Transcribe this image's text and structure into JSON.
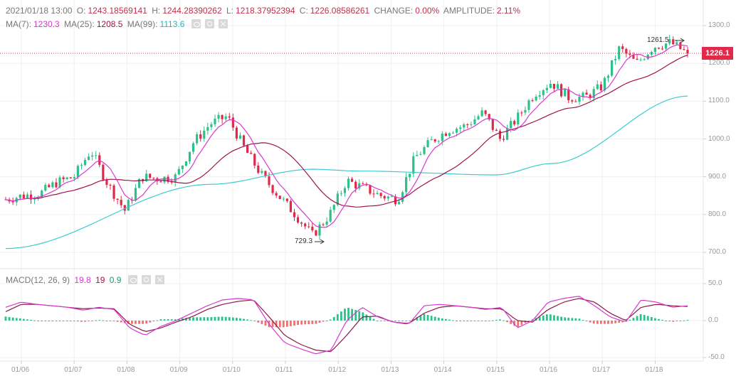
{
  "header": {
    "datetime": "2021/01/18 13:00",
    "open_label": "O:",
    "open": "1243.18569141",
    "high_label": "H:",
    "high": "1244.28390262",
    "low_label": "L:",
    "low": "1218.37952394",
    "close_label": "C:",
    "close": "1226.08586261",
    "change_label": "CHANGE:",
    "change": "0.00%",
    "amplitude_label": "AMPLITUDE:",
    "amplitude": "2.11%"
  },
  "ma_legend": {
    "ma7_label": "MA(7):",
    "ma7": "1230.3",
    "ma25_label": "MA(25):",
    "ma25": "1208.5",
    "ma99_label": "MA(99):",
    "ma99": "1113.6"
  },
  "macd_legend": {
    "label": "MACD(12, 26, 9)",
    "dif": "19.8",
    "dea": "19",
    "hist": "0.9"
  },
  "icons": [
    "eye-icon",
    "settings-icon",
    "close-icon"
  ],
  "current_price_tag": "1226.1",
  "annotations": {
    "max": "1261.5",
    "min": "729.3"
  },
  "colors": {
    "up": "#2ec08a",
    "down": "#e0294a",
    "ma7": "#d63ad0",
    "ma25": "#a0134f",
    "ma99": "#3ccbd0",
    "macd_dif": "#d63ad0",
    "macd_dea": "#8a1a4a",
    "hist_up": "#2ec08a",
    "hist_down": "#f07070",
    "grid": "#f0f0f0",
    "price_line": "#e0294a"
  },
  "chart_data": [
    {
      "type": "candlestick",
      "title": "Price (hourly candles) with MA(7), MA(25), MA(99)",
      "x_ticks": [
        "01/06",
        "01/07",
        "01/08",
        "01/09",
        "01/10",
        "01/11",
        "01/12",
        "01/13",
        "01/14",
        "01/15",
        "01/16",
        "01/17",
        "01/18"
      ],
      "y_ticks": [
        1300.0,
        1200.0,
        1100.0,
        1000.0,
        900.0,
        800.0,
        700.0
      ],
      "ylim": [
        680,
        1320
      ],
      "current_price": 1226.1,
      "max_annotation": 1261.5,
      "min_annotation": 729.3,
      "price_path": {
        "x": [
          "01/05 18:00",
          "01/06",
          "01/06 12:00",
          "01/07",
          "01/07 12:00",
          "01/07 20:00",
          "01/08",
          "01/08 06:00",
          "01/08 12:00",
          "01/09",
          "01/09 12:00",
          "01/10",
          "01/10 12:00",
          "01/10 20:00",
          "01/11",
          "01/11 06:00",
          "01/11 12:00",
          "01/11 16:00",
          "01/12",
          "01/12 06:00",
          "01/12 12:00",
          "01/12 18:00",
          "01/13",
          "01/13 12:00",
          "01/14",
          "01/14 12:00",
          "01/15",
          "01/15 12:00",
          "01/16",
          "01/16 02:00",
          "01/16 08:00",
          "01/16 12:00",
          "01/16 20:00",
          "01/17",
          "01/17 06:00",
          "01/17 12:00",
          "01/17 18:00",
          "01/18",
          "01/18 06:00",
          "01/18 10:00",
          "01/18 13:00"
        ],
        "close": [
          840,
          850,
          855,
          885,
          900,
          970,
          880,
          810,
          900,
          895,
          900,
          990,
          1040,
          1060,
          975,
          905,
          850,
          800,
          745,
          800,
          890,
          870,
          850,
          840,
          950,
          995,
          1025,
          1035,
          1070,
          1000,
          1055,
          1120,
          1150,
          1110,
          1110,
          1140,
          1240,
          1200,
          1245,
          1255,
          1226
        ]
      },
      "ma99_path": {
        "start": 710,
        "at_01_11": 920,
        "at_01_12": 915,
        "at_01_15": 905,
        "end": 1113.6
      }
    },
    {
      "type": "macd",
      "title": "MACD(12, 26, 9)",
      "y_ticks": [
        50.0,
        0.0,
        -50.0
      ],
      "ylim": [
        -52,
        52
      ],
      "latest": {
        "dif": 19.8,
        "dea": 19,
        "hist": 0.9
      },
      "dif_path": [
        18,
        25,
        22,
        20,
        18,
        14,
        18,
        15,
        -10,
        -20,
        -8,
        0,
        10,
        20,
        28,
        30,
        28,
        -5,
        -30,
        -38,
        -45,
        -40,
        0,
        18,
        5,
        -2,
        -5,
        20,
        22,
        20,
        18,
        15,
        18,
        -10,
        0,
        25,
        30,
        33,
        20,
        5,
        -2,
        28,
        25,
        18,
        20
      ],
      "dea_path": [
        12,
        22,
        22,
        20,
        18,
        16,
        17,
        16,
        -5,
        -15,
        -10,
        -2,
        5,
        15,
        22,
        26,
        28,
        5,
        -20,
        -32,
        -40,
        -42,
        -20,
        5,
        6,
        -2,
        -4,
        10,
        18,
        20,
        18,
        16,
        16,
        0,
        -2,
        15,
        25,
        30,
        25,
        10,
        0,
        18,
        22,
        20,
        19
      ]
    }
  ]
}
